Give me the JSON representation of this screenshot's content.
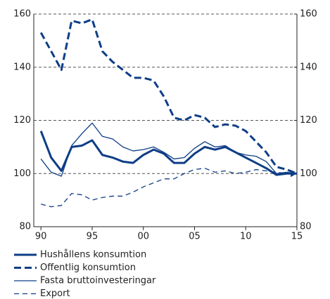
{
  "chart_data": {
    "type": "line",
    "x": [
      1990,
      1991,
      1992,
      1993,
      1994,
      1995,
      1996,
      1997,
      1998,
      1999,
      2000,
      2001,
      2002,
      2003,
      2004,
      2005,
      2006,
      2007,
      2008,
      2009,
      2010,
      2011,
      2012,
      2013,
      2014,
      2015
    ],
    "series": [
      {
        "name": "Hushållens konsumtion",
        "color": "#0d3d86",
        "line_style": "solid",
        "line_width": 3,
        "values": [
          116,
          106,
          101,
          110,
          110.5,
          112.5,
          107,
          106,
          104.5,
          104,
          107,
          109,
          107.5,
          104,
          104,
          107.5,
          110,
          109,
          110,
          108,
          106,
          104,
          102,
          99.5,
          100,
          100
        ]
      },
      {
        "name": "Offentlig konsumtion",
        "color": "#0d3d86",
        "line_style": "dashed",
        "line_width": 3,
        "values": [
          153,
          146,
          139,
          157.5,
          156.5,
          158,
          146,
          142,
          139,
          136,
          136,
          135,
          129,
          121,
          120,
          122,
          121,
          117.5,
          118.5,
          118,
          116,
          112,
          108,
          102.5,
          101.5,
          100
        ]
      },
      {
        "name": "Fasta bruttoinvesteringar",
        "color": "#0d3d86",
        "line_style": "solid",
        "line_width": 1.3,
        "values": [
          105.5,
          100.5,
          99,
          110.5,
          115,
          119,
          114,
          113,
          110,
          108.5,
          109,
          110,
          108,
          105.5,
          106,
          109.5,
          112,
          110,
          110.5,
          108,
          107,
          106.5,
          104.5,
          100,
          100.5,
          100
        ]
      },
      {
        "name": "Export",
        "color": "#0d3d86",
        "line_style": "dashed",
        "line_width": 1.3,
        "values": [
          88.5,
          87.5,
          88,
          92.5,
          92,
          90,
          91,
          91.5,
          91.5,
          93,
          95,
          96.5,
          98,
          98,
          100,
          101.5,
          102,
          100.5,
          101,
          100,
          100.5,
          101.5,
          101,
          100.5,
          100,
          100
        ]
      }
    ],
    "xlim": [
      1989.3,
      2015
    ],
    "xticks": [
      {
        "value": 1990,
        "label": "90"
      },
      {
        "value": 1995,
        "label": "95"
      },
      {
        "value": 2000,
        "label": "00"
      },
      {
        "value": 2005,
        "label": "05"
      },
      {
        "value": 2010,
        "label": "10"
      },
      {
        "value": 2015,
        "label": "15"
      }
    ],
    "ylim": [
      80,
      160
    ],
    "yticks": [
      80,
      100,
      120,
      140,
      160
    ],
    "y2lim": [
      80,
      160
    ],
    "y2ticks": [
      80,
      100,
      120,
      140,
      160
    ],
    "grid": true
  }
}
